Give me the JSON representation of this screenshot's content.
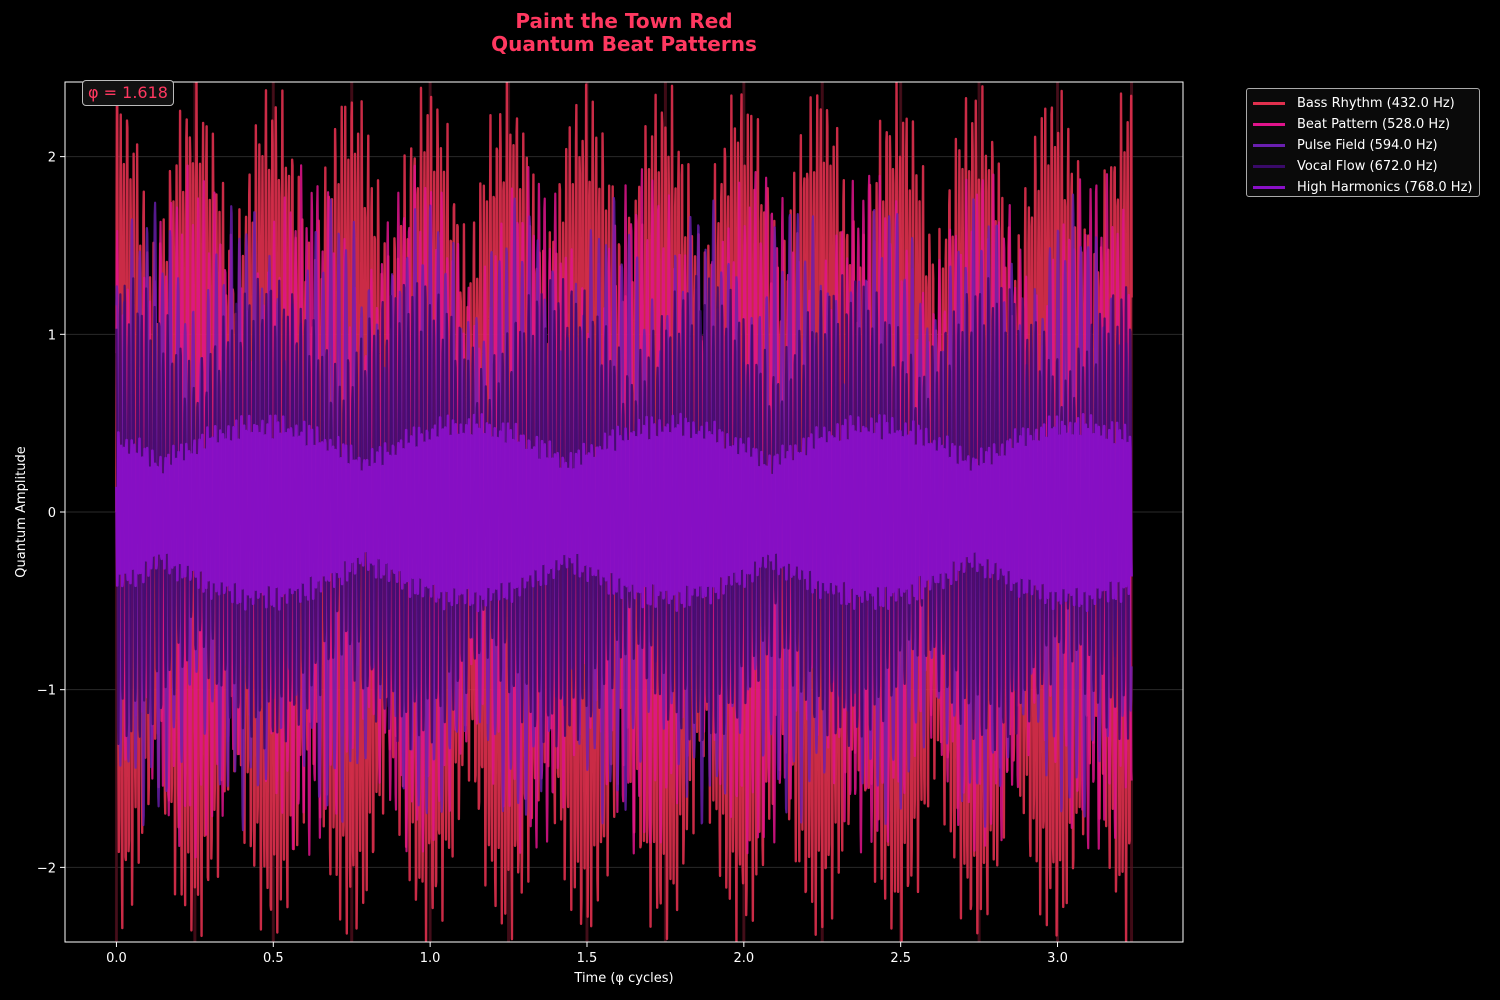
{
  "title": "Paint the Town Red",
  "subtitle": "Quantum Beat Patterns",
  "phi_annotation": "φ = 1.618",
  "chart_data": {
    "type": "line",
    "xlabel": "Time (φ cycles)",
    "ylabel": "Quantum Amplitude",
    "xlim": [
      -0.164,
      3.4
    ],
    "ylim": [
      -2.42,
      2.42
    ],
    "x_ticks": [
      0.0,
      0.5,
      1.0,
      1.5,
      2.0,
      2.5,
      3.0
    ],
    "x_tick_labels": [
      "0.0",
      "0.5",
      "1.0",
      "1.5",
      "2.0",
      "2.5",
      "3.0"
    ],
    "y_ticks": [
      -2,
      -1,
      0,
      1,
      2
    ],
    "y_tick_labels": [
      "−2",
      "−1",
      "0",
      "1",
      "2"
    ],
    "x_range": [
      0,
      3.236
    ],
    "grid": true,
    "legend_placement": "outside-top-right",
    "vertical_markers_x": [
      0.0,
      0.25,
      0.5,
      0.75,
      1.0,
      1.25,
      1.5,
      1.75,
      2.0,
      2.25,
      2.5,
      2.75,
      3.0,
      3.236
    ],
    "series": [
      {
        "name": "Bass Rhythm (432.0 Hz)",
        "frequency_hz": 432.0,
        "color": "#e0304e",
        "peak_amplitude": 2.2
      },
      {
        "name": "Beat Pattern (528.0 Hz)",
        "frequency_hz": 528.0,
        "color": "#e0148c",
        "peak_amplitude": 1.75
      },
      {
        "name": "Pulse Field (594.0 Hz)",
        "frequency_hz": 594.0,
        "color": "#6a1fb0",
        "peak_amplitude": 1.6
      },
      {
        "name": "Vocal Flow (672.0 Hz)",
        "frequency_hz": 672.0,
        "color": "#3a0a6a",
        "peak_amplitude": 1.2
      },
      {
        "name": "High Harmonics (768.0 Hz)",
        "frequency_hz": 768.0,
        "color": "#8a10c8",
        "peak_amplitude": 0.5
      }
    ]
  }
}
